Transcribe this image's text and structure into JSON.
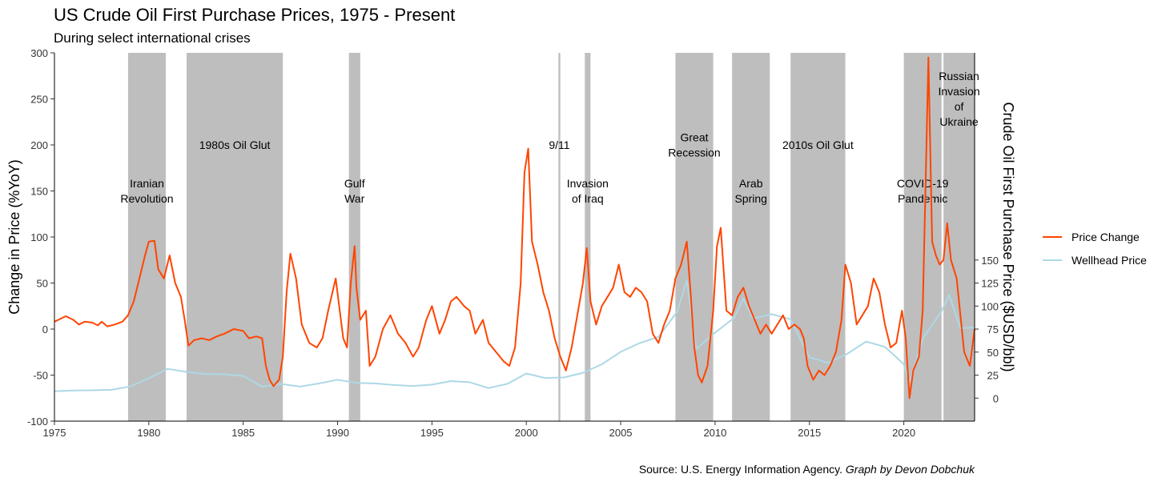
{
  "title": "US Crude Oil First Purchase Prices, 1975 - Present",
  "subtitle": "During select international crises",
  "source": {
    "text": "Source: U.S. Energy Information Agency.",
    "credit": "Graph by Devon Dobchuk"
  },
  "colors": {
    "price_change": "#FF4500",
    "wellhead": "#ADD8E6",
    "crisis_band": "#BEBEBE"
  },
  "chart_data": {
    "type": "line",
    "xlabel": "",
    "ylabel": "Change in Price (%YoY)",
    "y2label": "Crude Oil First Purchase Price ($USD/bbl)",
    "xlim": [
      1975,
      2023.75
    ],
    "ylim": [
      -100,
      300
    ],
    "y2lim": [
      -25,
      375
    ],
    "x_ticks": [
      "1975",
      "1980",
      "1985",
      "1990",
      "1995",
      "2000",
      "2005",
      "2010",
      "2015",
      "2020"
    ],
    "y_ticks": [
      "-100",
      "-50",
      "0",
      "50",
      "100",
      "150",
      "200",
      "250",
      "300"
    ],
    "y2_ticks": [
      "0",
      "25",
      "50",
      "75",
      "100",
      "125",
      "150"
    ],
    "legend_position": "right",
    "grid": false,
    "crises": [
      {
        "label": [
          "Iranian",
          "Revolution"
        ],
        "start": 1978.9,
        "end": 1980.9,
        "label_y": 150
      },
      {
        "label": [
          "1980s Oil Glut"
        ],
        "start": 1982.0,
        "end": 1987.1,
        "label_y": 200
      },
      {
        "label": [
          "Gulf",
          "War"
        ],
        "start": 1990.6,
        "end": 1991.2,
        "label_y": 150
      },
      {
        "label": [
          "9/11"
        ],
        "start": 2001.7,
        "end": 2001.8,
        "label_y": 200
      },
      {
        "label": [
          "Invasion",
          "of Iraq"
        ],
        "start": 2003.1,
        "end": 2003.4,
        "label_y": 150
      },
      {
        "label": [
          "Great",
          "Recession"
        ],
        "start": 2007.9,
        "end": 2009.9,
        "label_y": 200
      },
      {
        "label": [
          "Arab",
          "Spring"
        ],
        "start": 2010.9,
        "end": 2012.9,
        "label_y": 150
      },
      {
        "label": [
          "2010s Oil Glut"
        ],
        "start": 2014.0,
        "end": 2016.9,
        "label_y": 200
      },
      {
        "label": [
          "COVID-19",
          "Pandemic"
        ],
        "start": 2020.0,
        "end": 2022.0,
        "label_y": 150
      },
      {
        "label": [
          "Russian",
          "Invasion",
          "of",
          "Ukraine"
        ],
        "start": 2022.1,
        "end": 2023.75,
        "label_y": 250
      }
    ],
    "series": [
      {
        "name": "Price Change",
        "axis": "left",
        "points": [
          [
            1975.0,
            8
          ],
          [
            1975.3,
            11
          ],
          [
            1975.6,
            14
          ],
          [
            1976.0,
            10
          ],
          [
            1976.3,
            5
          ],
          [
            1976.6,
            8
          ],
          [
            1977.0,
            7
          ],
          [
            1977.3,
            4
          ],
          [
            1977.5,
            8
          ],
          [
            1977.8,
            3
          ],
          [
            1978.2,
            5
          ],
          [
            1978.6,
            8
          ],
          [
            1978.9,
            15
          ],
          [
            1979.2,
            30
          ],
          [
            1979.5,
            55
          ],
          [
            1979.8,
            80
          ],
          [
            1980.0,
            95
          ],
          [
            1980.3,
            96
          ],
          [
            1980.5,
            65
          ],
          [
            1980.8,
            55
          ],
          [
            1981.1,
            80
          ],
          [
            1981.4,
            50
          ],
          [
            1981.7,
            35
          ],
          [
            1981.9,
            10
          ],
          [
            1982.1,
            -18
          ],
          [
            1982.4,
            -12
          ],
          [
            1982.8,
            -10
          ],
          [
            1983.2,
            -12
          ],
          [
            1983.6,
            -8
          ],
          [
            1984.0,
            -5
          ],
          [
            1984.5,
            0
          ],
          [
            1985.0,
            -2
          ],
          [
            1985.3,
            -10
          ],
          [
            1985.7,
            -8
          ],
          [
            1986.0,
            -10
          ],
          [
            1986.2,
            -40
          ],
          [
            1986.4,
            -55
          ],
          [
            1986.6,
            -62
          ],
          [
            1986.9,
            -55
          ],
          [
            1987.1,
            -30
          ],
          [
            1987.3,
            40
          ],
          [
            1987.5,
            82
          ],
          [
            1987.8,
            55
          ],
          [
            1988.1,
            5
          ],
          [
            1988.5,
            -15
          ],
          [
            1988.9,
            -20
          ],
          [
            1989.2,
            -10
          ],
          [
            1989.5,
            20
          ],
          [
            1989.9,
            55
          ],
          [
            1990.3,
            -10
          ],
          [
            1990.5,
            -20
          ],
          [
            1990.7,
            50
          ],
          [
            1990.9,
            90
          ],
          [
            1991.0,
            45
          ],
          [
            1991.2,
            10
          ],
          [
            1991.5,
            20
          ],
          [
            1991.7,
            -40
          ],
          [
            1992.0,
            -30
          ],
          [
            1992.4,
            0
          ],
          [
            1992.8,
            15
          ],
          [
            1993.2,
            -5
          ],
          [
            1993.6,
            -15
          ],
          [
            1994.0,
            -30
          ],
          [
            1994.3,
            -20
          ],
          [
            1994.7,
            10
          ],
          [
            1995.0,
            25
          ],
          [
            1995.4,
            -5
          ],
          [
            1995.7,
            10
          ],
          [
            1996.0,
            30
          ],
          [
            1996.3,
            35
          ],
          [
            1996.7,
            25
          ],
          [
            1997.0,
            20
          ],
          [
            1997.3,
            -5
          ],
          [
            1997.7,
            10
          ],
          [
            1998.0,
            -15
          ],
          [
            1998.4,
            -25
          ],
          [
            1998.8,
            -35
          ],
          [
            1999.1,
            -40
          ],
          [
            1999.4,
            -20
          ],
          [
            1999.7,
            50
          ],
          [
            1999.9,
            170
          ],
          [
            2000.1,
            196
          ],
          [
            2000.3,
            95
          ],
          [
            2000.6,
            70
          ],
          [
            2000.9,
            40
          ],
          [
            2001.2,
            20
          ],
          [
            2001.5,
            -10
          ],
          [
            2001.8,
            -30
          ],
          [
            2002.1,
            -45
          ],
          [
            2002.4,
            -20
          ],
          [
            2002.7,
            15
          ],
          [
            2003.0,
            50
          ],
          [
            2003.2,
            88
          ],
          [
            2003.4,
            30
          ],
          [
            2003.7,
            5
          ],
          [
            2004.0,
            25
          ],
          [
            2004.3,
            35
          ],
          [
            2004.6,
            45
          ],
          [
            2004.9,
            70
          ],
          [
            2005.2,
            40
          ],
          [
            2005.5,
            35
          ],
          [
            2005.8,
            45
          ],
          [
            2006.1,
            40
          ],
          [
            2006.4,
            30
          ],
          [
            2006.7,
            -5
          ],
          [
            2007.0,
            -15
          ],
          [
            2007.3,
            5
          ],
          [
            2007.6,
            20
          ],
          [
            2007.9,
            55
          ],
          [
            2008.2,
            70
          ],
          [
            2008.5,
            95
          ],
          [
            2008.7,
            40
          ],
          [
            2008.9,
            -20
          ],
          [
            2009.1,
            -50
          ],
          [
            2009.3,
            -58
          ],
          [
            2009.6,
            -40
          ],
          [
            2009.9,
            20
          ],
          [
            2010.1,
            90
          ],
          [
            2010.3,
            110
          ],
          [
            2010.6,
            20
          ],
          [
            2010.9,
            15
          ],
          [
            2011.2,
            35
          ],
          [
            2011.5,
            45
          ],
          [
            2011.8,
            25
          ],
          [
            2012.1,
            10
          ],
          [
            2012.4,
            -5
          ],
          [
            2012.7,
            5
          ],
          [
            2013.0,
            -5
          ],
          [
            2013.3,
            5
          ],
          [
            2013.6,
            15
          ],
          [
            2013.9,
            0
          ],
          [
            2014.2,
            5
          ],
          [
            2014.5,
            0
          ],
          [
            2014.7,
            -10
          ],
          [
            2014.9,
            -40
          ],
          [
            2015.2,
            -55
          ],
          [
            2015.5,
            -45
          ],
          [
            2015.8,
            -50
          ],
          [
            2016.1,
            -40
          ],
          [
            2016.4,
            -25
          ],
          [
            2016.7,
            10
          ],
          [
            2016.9,
            70
          ],
          [
            2017.2,
            50
          ],
          [
            2017.5,
            5
          ],
          [
            2017.8,
            15
          ],
          [
            2018.1,
            25
          ],
          [
            2018.4,
            55
          ],
          [
            2018.7,
            40
          ],
          [
            2019.0,
            5
          ],
          [
            2019.3,
            -20
          ],
          [
            2019.6,
            -15
          ],
          [
            2019.9,
            20
          ],
          [
            2020.1,
            -10
          ],
          [
            2020.3,
            -75
          ],
          [
            2020.5,
            -45
          ],
          [
            2020.8,
            -30
          ],
          [
            2021.0,
            20
          ],
          [
            2021.2,
            200
          ],
          [
            2021.3,
            295
          ],
          [
            2021.5,
            95
          ],
          [
            2021.7,
            80
          ],
          [
            2021.9,
            70
          ],
          [
            2022.1,
            75
          ],
          [
            2022.3,
            115
          ],
          [
            2022.5,
            75
          ],
          [
            2022.8,
            55
          ],
          [
            2023.0,
            15
          ],
          [
            2023.2,
            -25
          ],
          [
            2023.5,
            -40
          ],
          [
            2023.75,
            0
          ]
        ]
      },
      {
        "name": "Wellhead Price",
        "axis": "right",
        "points": [
          [
            1975.0,
            7.5
          ],
          [
            1976.0,
            8.2
          ],
          [
            1977.0,
            8.6
          ],
          [
            1978.0,
            9.0
          ],
          [
            1979.0,
            12.6
          ],
          [
            1980.0,
            21.6
          ],
          [
            1981.0,
            31.8
          ],
          [
            1982.0,
            28.5
          ],
          [
            1983.0,
            26.2
          ],
          [
            1984.0,
            25.9
          ],
          [
            1985.0,
            24.1
          ],
          [
            1986.0,
            12.5
          ],
          [
            1987.0,
            15.4
          ],
          [
            1988.0,
            12.6
          ],
          [
            1989.0,
            15.9
          ],
          [
            1990.0,
            20.0
          ],
          [
            1991.0,
            16.5
          ],
          [
            1992.0,
            15.99
          ],
          [
            1993.0,
            14.25
          ],
          [
            1994.0,
            13.19
          ],
          [
            1995.0,
            14.62
          ],
          [
            1996.0,
            18.46
          ],
          [
            1997.0,
            17.23
          ],
          [
            1998.0,
            10.87
          ],
          [
            1999.0,
            15.56
          ],
          [
            2000.0,
            26.72
          ],
          [
            2001.0,
            21.84
          ],
          [
            2002.0,
            22.51
          ],
          [
            2003.0,
            27.56
          ],
          [
            2004.0,
            36.77
          ],
          [
            2005.0,
            50.28
          ],
          [
            2006.0,
            59.69
          ],
          [
            2007.0,
            66.52
          ],
          [
            2008.0,
            94.04
          ],
          [
            2008.5,
            128
          ],
          [
            2009.0,
            53.48
          ],
          [
            2010.0,
            71.21
          ],
          [
            2011.0,
            87.04
          ],
          [
            2011.5,
            108
          ],
          [
            2012.0,
            86.46
          ],
          [
            2013.0,
            91.17
          ],
          [
            2014.0,
            85.6
          ],
          [
            2015.0,
            44.39
          ],
          [
            2016.0,
            38.29
          ],
          [
            2017.0,
            48.05
          ],
          [
            2018.0,
            61.4
          ],
          [
            2019.0,
            55.59
          ],
          [
            2020.0,
            36.86
          ],
          [
            2020.3,
            17
          ],
          [
            2021.0,
            64.34
          ],
          [
            2022.0,
            94.53
          ],
          [
            2022.4,
            112
          ],
          [
            2023.0,
            75.8
          ],
          [
            2023.75,
            77
          ]
        ]
      }
    ]
  }
}
